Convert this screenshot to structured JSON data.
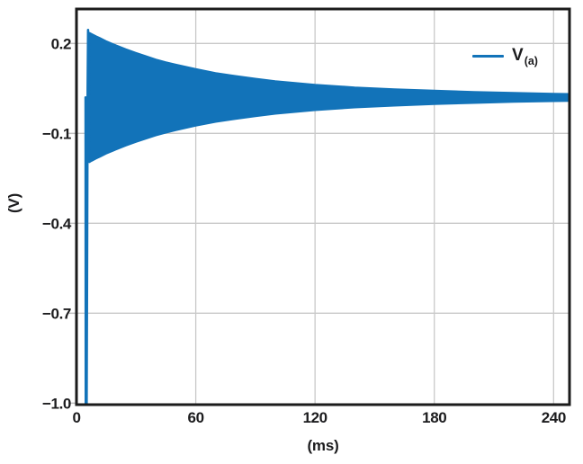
{
  "colors": {
    "accent_blue": "#1273b9",
    "frame": "#1b1b1b",
    "grid": "#c9c9c9",
    "tick_mark": "#bfbfbf",
    "text": "#1c1c1e",
    "background": "#ffffff"
  },
  "chart_data": {
    "type": "line",
    "title": "",
    "xlabel": "(ms)",
    "ylabel": "(V)",
    "xlim": [
      0,
      248
    ],
    "ylim": [
      -1.005,
      0.315
    ],
    "grid": true,
    "legend_position": "upper right",
    "legend": {
      "main": "V",
      "sub": "(a)"
    },
    "x_ticks": [
      {
        "value": 0,
        "label": "0"
      },
      {
        "value": 60,
        "label": "60"
      },
      {
        "value": 120,
        "label": "120"
      },
      {
        "value": 180,
        "label": "180"
      },
      {
        "value": 240,
        "label": "240"
      }
    ],
    "y_ticks": [
      {
        "value": 0.2,
        "label": "0.2"
      },
      {
        "value": -0.1,
        "label": "−0.1"
      },
      {
        "value": -0.4,
        "label": "−0.4"
      },
      {
        "value": -0.7,
        "label": "−0.7"
      },
      {
        "value": -1.0,
        "label": "−1.0"
      }
    ],
    "series": [
      {
        "name": "V_(a)",
        "description": "Startup transient spike to -1.0 V near t=5 ms followed by a high-frequency oscillation whose envelope decays toward a settling value of about +0.02 V",
        "settle_v": 0.02,
        "transient_points": [
          [
            4.55,
            0.02
          ],
          [
            4.65,
            -1.0
          ],
          [
            5.1,
            -1.0
          ],
          [
            5.35,
            -0.55
          ],
          [
            5.6,
            0.05
          ],
          [
            5.85,
            0.245
          ],
          [
            6.1,
            -0.19
          ],
          [
            6.35,
            0.23
          ],
          [
            6.5,
            -0.195
          ]
        ],
        "envelope": [
          [
            6.5,
            0.237,
            -0.197
          ],
          [
            8,
            0.232,
            -0.192
          ],
          [
            10,
            0.225,
            -0.185
          ],
          [
            12,
            0.219,
            -0.179
          ],
          [
            15,
            0.209,
            -0.169
          ],
          [
            20,
            0.195,
            -0.155
          ],
          [
            25,
            0.182,
            -0.142
          ],
          [
            30,
            0.17,
            -0.13
          ],
          [
            35,
            0.159,
            -0.119
          ],
          [
            40,
            0.148,
            -0.108
          ],
          [
            45,
            0.139,
            -0.099
          ],
          [
            50,
            0.131,
            -0.091
          ],
          [
            60,
            0.116,
            -0.076
          ],
          [
            70,
            0.103,
            -0.063
          ],
          [
            80,
            0.093,
            -0.053
          ],
          [
            90,
            0.084,
            -0.044
          ],
          [
            100,
            0.076,
            -0.036
          ],
          [
            110,
            0.07,
            -0.03
          ],
          [
            120,
            0.064,
            -0.024
          ],
          [
            140,
            0.055,
            -0.015
          ],
          [
            160,
            0.049,
            -0.009
          ],
          [
            180,
            0.044,
            -0.004
          ],
          [
            200,
            0.04,
            0.0
          ],
          [
            220,
            0.037,
            0.004
          ],
          [
            240,
            0.034,
            0.006
          ],
          [
            248,
            0.033,
            0.007
          ]
        ]
      }
    ]
  }
}
